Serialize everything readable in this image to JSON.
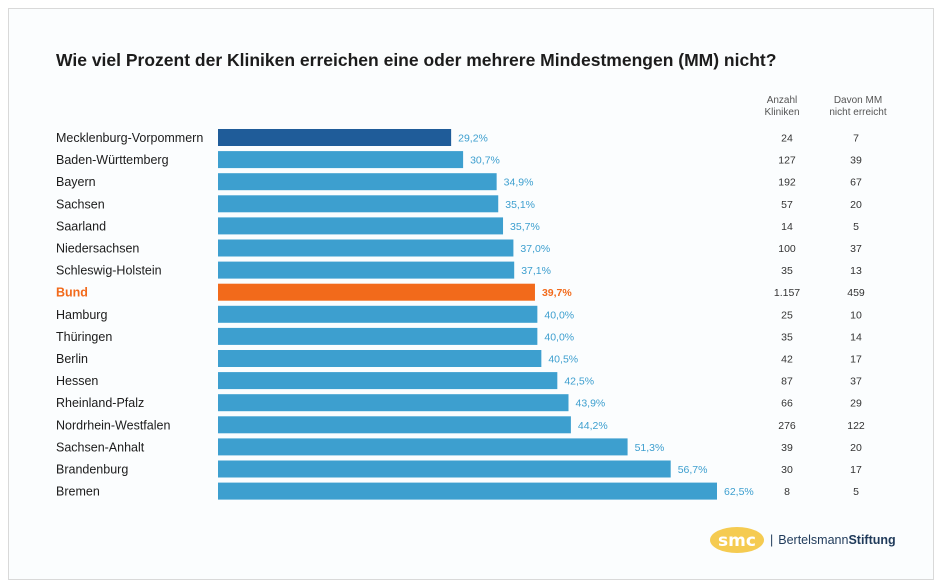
{
  "chart_data": {
    "type": "bar",
    "orientation": "horizontal",
    "title": "Wie viel Prozent der Kliniken erreichen eine oder mehrere Mindestmengen (MM) nicht?",
    "column_headers": [
      "Anzahl\nKliniken",
      "Davon MM\nnicht erreicht"
    ],
    "categories": [
      "Mecklenburg-Vorpommern",
      "Baden-Württemberg",
      "Bayern",
      "Sachsen",
      "Saarland",
      "Niedersachsen",
      "Schleswig-Holstein",
      "Bund",
      "Hamburg",
      "Thüringen",
      "Berlin",
      "Hessen",
      "Rheinland-Pfalz",
      "Nordrhein-Westfalen",
      "Sachsen-Anhalt",
      "Brandenburg",
      "Bremen"
    ],
    "values": [
      29.2,
      30.7,
      34.9,
      35.1,
      35.7,
      37.0,
      37.1,
      39.7,
      40.0,
      40.0,
      40.5,
      42.5,
      43.9,
      44.2,
      51.3,
      56.7,
      62.5
    ],
    "value_labels": [
      "29,2%",
      "30,7%",
      "34,9%",
      "35,1%",
      "35,7%",
      "37,0%",
      "37,1%",
      "39,7%",
      "40,0%",
      "40,0%",
      "40,5%",
      "42,5%",
      "43,9%",
      "44,2%",
      "51,3%",
      "56,7%",
      "62,5%"
    ],
    "anzahl_kliniken": [
      "24",
      "127",
      "192",
      "57",
      "14",
      "100",
      "35",
      "1.157",
      "25",
      "35",
      "42",
      "87",
      "66",
      "276",
      "39",
      "30",
      "8"
    ],
    "davon_nicht_erreicht": [
      "7",
      "39",
      "67",
      "20",
      "5",
      "37",
      "13",
      "459",
      "10",
      "14",
      "17",
      "37",
      "29",
      "122",
      "20",
      "17",
      "5"
    ],
    "xlim": [
      0,
      62.5
    ],
    "highlight_first_color": "#1f5c99",
    "highlight_index": 7,
    "highlight_color": "#f26a1b",
    "bar_color": "#3d9fcf",
    "label_color": "#3d9fcf",
    "grid": false,
    "legend": "none"
  },
  "footer": {
    "brand_part1": "Bertelsmann",
    "brand_part2": "Stiftung"
  }
}
